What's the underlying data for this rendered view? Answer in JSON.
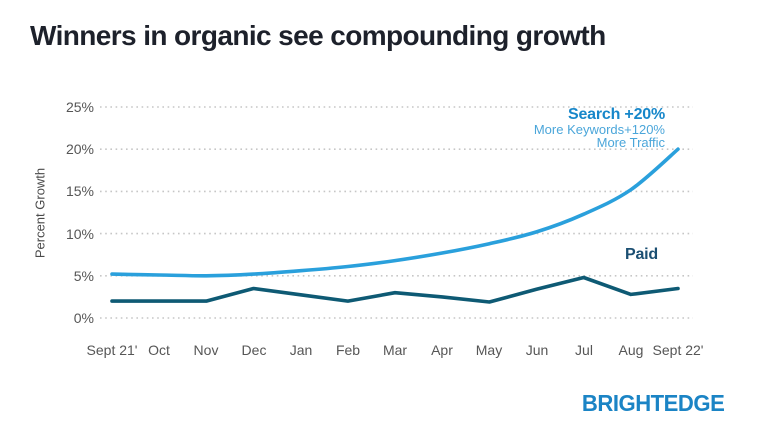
{
  "title": "Winners in organic see compounding growth",
  "logo": "BRIGHTEDGE",
  "colors": {
    "title_text": "#1d212b",
    "search_line": "#2aa0dc",
    "paid_line": "#0e5a74",
    "search_label_bold": "#1787ca",
    "search_label_light": "#4ba6da",
    "paid_label": "#1b4f72",
    "logo_blue": "#1b84c5",
    "grid": "#c6c6c6",
    "tick_text": "#565656"
  },
  "chart_data": {
    "type": "line",
    "title": "",
    "xlabel": "",
    "ylabel": "Percent Growth",
    "ylim": [
      0,
      25
    ],
    "grid": "horizontal-dotted",
    "legend_position": "inline-annotations",
    "ytick_labels": [
      "0%",
      "5%",
      "10%",
      "15%",
      "20%",
      "25%"
    ],
    "categories": [
      "Sept 21'",
      "Oct",
      "Nov",
      "Dec",
      "Jan",
      "Feb",
      "Mar",
      "Apr",
      "May",
      "Jun",
      "Jul",
      "Aug",
      "Sept 22'"
    ],
    "series": [
      {
        "name": "Search",
        "style": "smooth",
        "color": "#2aa0dc",
        "values": [
          5.2,
          5.1,
          5.0,
          5.2,
          5.6,
          6.1,
          6.8,
          7.7,
          8.8,
          10.2,
          12.3,
          15.2,
          20.0
        ]
      },
      {
        "name": "Paid",
        "style": "linear",
        "color": "#0e5a74",
        "values": [
          2.0,
          2.0,
          2.0,
          3.5,
          2.75,
          2.0,
          3.0,
          2.5,
          1.9,
          3.4,
          4.8,
          2.8,
          3.5
        ]
      }
    ],
    "annotations": {
      "search_line1": "Search +20%",
      "search_line2": "More Keywords+120%",
      "search_line3": "More Traffic",
      "paid_label": "Paid"
    }
  }
}
